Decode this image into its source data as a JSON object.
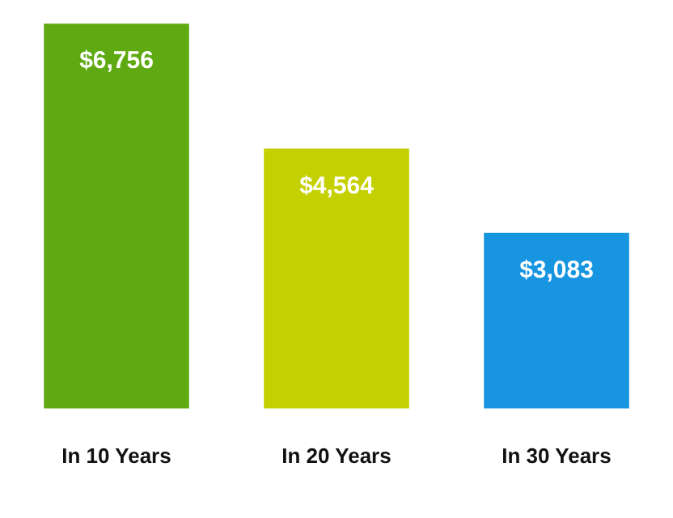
{
  "chart_data": {
    "type": "bar",
    "categories": [
      "In 10 Years",
      "In 20 Years",
      "In 30 Years"
    ],
    "values": [
      6756,
      4564,
      3083
    ],
    "colors": [
      "#5faa12",
      "#c4d000",
      "#1795e0"
    ],
    "value_labels": [
      "$6,756",
      "$4,564",
      "$3,083"
    ],
    "grid": false,
    "legend": false
  }
}
